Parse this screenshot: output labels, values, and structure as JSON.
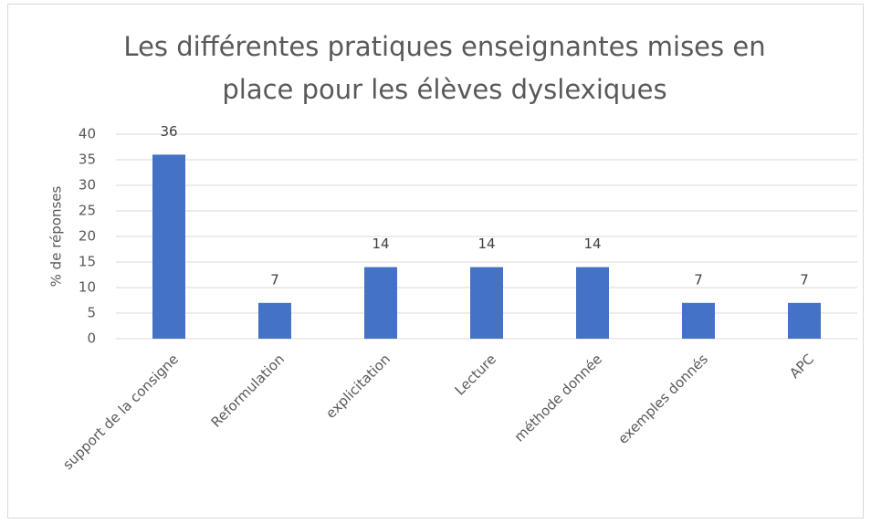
{
  "chart_data": {
    "type": "bar",
    "title": "Les différentes pratiques enseignantes mises en place pour les élèves dyslexiques",
    "y_label": "% de réponses",
    "categories": [
      "support de la consigne",
      "Reformulation",
      "explicitation",
      "Lecture",
      "méthode donnée",
      "exemples donnés",
      "APC"
    ],
    "values": [
      36,
      7,
      14,
      14,
      14,
      7,
      7
    ],
    "color": "#4472c4",
    "ylim": [
      0,
      40
    ],
    "yticks": [
      0,
      5,
      10,
      15,
      20,
      25,
      30,
      35,
      40
    ],
    "grid": true
  }
}
